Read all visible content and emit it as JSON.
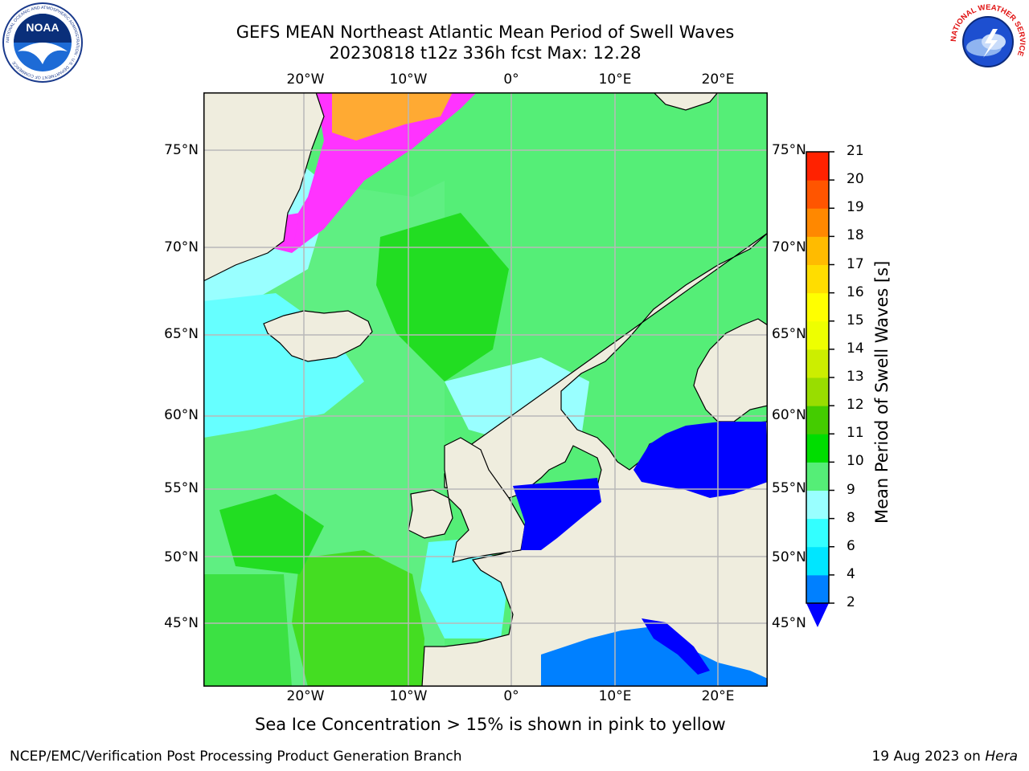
{
  "title": {
    "line1": "GEFS MEAN Northeast Atlantic Mean Period of Swell Waves",
    "line2": "20230818 t12z 336h fcst   Max: 12.28"
  },
  "logos": {
    "left": {
      "name": "noaa-logo",
      "text": "NOAA",
      "ring_text": "NATIONAL OCEANIC AND ATMOSPHERIC ADMINISTRATION · U.S. DEPARTMENT OF COMMERCE"
    },
    "right": {
      "name": "nws-logo",
      "ring_text": "NATIONAL WEATHER SERVICE"
    }
  },
  "map": {
    "lon_labels": [
      "20°W",
      "10°W",
      "0°",
      "10°E",
      "20°E"
    ],
    "lat_labels_left": [
      "75°N",
      "70°N",
      "65°N",
      "60°N",
      "55°N",
      "50°N",
      "45°N"
    ],
    "lat_labels_right": [
      "75°N",
      "70°N",
      "65°N",
      "60°N",
      "55°N",
      "50°N",
      "45°N"
    ],
    "colors": {
      "land": "#efedde",
      "grid": "#b8b8b8",
      "coast": "#000000",
      "sea_ice": "#ff33ff"
    }
  },
  "colorbar": {
    "title": "Mean Period of Swell Waves [s]",
    "tick_labels": [
      "2",
      "4",
      "6",
      "8",
      "9",
      "10",
      "11",
      "12",
      "13",
      "14",
      "15",
      "16",
      "17",
      "18",
      "19",
      "20",
      "21"
    ],
    "colors": [
      "#0000ff",
      "#0080ff",
      "#00e6ff",
      "#33ffff",
      "#99ffff",
      "#55ee77",
      "#00dd00",
      "#44cc00",
      "#99dd00",
      "#ccee00",
      "#eeff00",
      "#ffff00",
      "#ffdd00",
      "#ffbb00",
      "#ff8800",
      "#ff5500",
      "#ff2200",
      "#ff0000"
    ],
    "extend": "min"
  },
  "caption": "Sea Ice Concentration > 15% is shown in pink to yellow",
  "footer": {
    "left": "NCEP/EMC/Verification Post Processing Product Generation Branch",
    "right_date": "19 Aug 2023 on ",
    "right_host": "Hera"
  }
}
